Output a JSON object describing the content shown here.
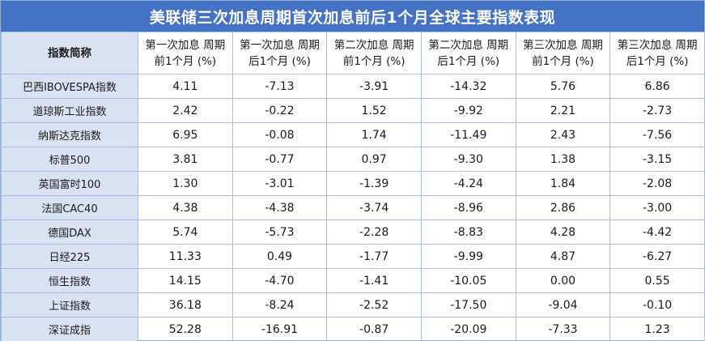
{
  "title": "美联储三次加息周期首次加息前后1个月全球主要指数表现",
  "header": {
    "first": "指数简称",
    "columns": [
      {
        "line1": "第一次加息 周期",
        "line2": "前1个月 (%)"
      },
      {
        "line1": "第一次加息 周期",
        "line2": "后1个月 (%)"
      },
      {
        "line1": "第二次加息 周期",
        "line2": "前1个月 (%)"
      },
      {
        "line1": "第二次加息 周期",
        "line2": "后1个月 (%)"
      },
      {
        "line1": "第三次加息 周期",
        "line2": "前1个月 (%)"
      },
      {
        "line1": "第三次加息 周期",
        "line2": "后1个月 (%)"
      }
    ]
  },
  "rows": [
    {
      "name": "巴西IBOVESPA指数",
      "values": [
        "4.11",
        "-7.13",
        "-3.91",
        "-14.32",
        "5.76",
        "6.86"
      ]
    },
    {
      "name": "道琼斯工业指数",
      "values": [
        "2.42",
        "-0.22",
        "1.52",
        "-9.92",
        "2.21",
        "-2.73"
      ]
    },
    {
      "name": "纳斯达克指数",
      "values": [
        "6.95",
        "-0.08",
        "1.74",
        "-11.49",
        "2.43",
        "-7.56"
      ]
    },
    {
      "name": "标普500",
      "values": [
        "3.81",
        "-0.77",
        "0.97",
        "-9.30",
        "1.38",
        "-3.15"
      ]
    },
    {
      "name": "英国富时100",
      "values": [
        "1.30",
        "-3.01",
        "-1.39",
        "-4.24",
        "1.84",
        "-2.08"
      ]
    },
    {
      "name": "法国CAC40",
      "values": [
        "4.38",
        "-4.38",
        "-3.74",
        "-8.96",
        "2.86",
        "-3.00"
      ]
    },
    {
      "name": "德国DAX",
      "values": [
        "5.74",
        "-5.73",
        "-2.28",
        "-8.83",
        "4.28",
        "-4.42"
      ]
    },
    {
      "name": "日经225",
      "values": [
        "11.33",
        "0.49",
        "-1.77",
        "-9.99",
        "4.87",
        "-6.27"
      ]
    },
    {
      "name": "恒生指数",
      "values": [
        "14.15",
        "-4.70",
        "-1.41",
        "-10.05",
        "0.00",
        "0.55"
      ]
    },
    {
      "name": "上证指数",
      "values": [
        "36.18",
        "-8.24",
        "-2.52",
        "-17.50",
        "-9.04",
        "-0.10"
      ]
    },
    {
      "name": "深证成指",
      "values": [
        "52.28",
        "-16.91",
        "-0.87",
        "-20.09",
        "-7.33",
        "1.23"
      ]
    }
  ],
  "colors": {
    "title_bg": "#4472c4",
    "name_col_bg": "#d9e2f3",
    "border": "#a9bde0"
  }
}
